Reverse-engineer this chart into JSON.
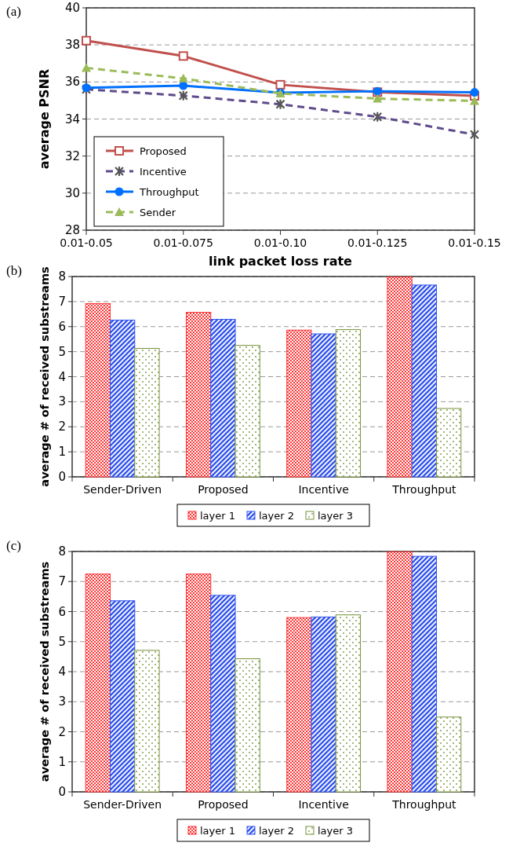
{
  "chart_data": [
    {
      "type": "line",
      "annotations": [
        "(a)"
      ],
      "xlabel": "link packet loss rate",
      "ylabel": "average PSNR",
      "categories": [
        "0.01-0.05",
        "0.01-0.075",
        "0.01-0.10",
        "0.01-0.125",
        "0.01-0.15"
      ],
      "ylim": [
        28,
        40
      ],
      "yticks": [
        28,
        30,
        32,
        34,
        36,
        38,
        40
      ],
      "grid": "y",
      "legend": "bottom left",
      "series": [
        {
          "name": "Proposed",
          "color": "#c0504d",
          "marker": "square",
          "line_style": "solid",
          "values": [
            38.23,
            37.4,
            35.85,
            35.45,
            35.25
          ]
        },
        {
          "name": "Incentive",
          "color": "#5f4b8b",
          "marker": "cross",
          "line_style": "dashed",
          "values": [
            35.6,
            35.26,
            34.8,
            34.12,
            33.16
          ]
        },
        {
          "name": "Throughput",
          "color": "#0070ff",
          "marker": "circle",
          "line_style": "solid",
          "values": [
            35.69,
            35.8,
            35.42,
            35.5,
            35.44
          ]
        },
        {
          "name": "Sender",
          "color": "#9bbb59",
          "marker": "triangle",
          "line_style": "dashed",
          "values": [
            36.76,
            36.19,
            35.38,
            35.1,
            34.98
          ]
        }
      ]
    },
    {
      "type": "bar",
      "annotations": [
        "(b)"
      ],
      "ylabel": "average # of received substreams",
      "categories": [
        "Sender-Driven",
        "Proposed",
        "Incentive",
        "Throughput"
      ],
      "ylim": [
        0,
        8
      ],
      "yticks": [
        0,
        1,
        2,
        3,
        4,
        5,
        6,
        7,
        8
      ],
      "grid": "y",
      "legend": "bottom",
      "series": [
        {
          "name": "layer 1",
          "color": "#ff3333",
          "values": [
            6.92,
            6.57,
            5.86,
            7.98
          ]
        },
        {
          "name": "layer 2",
          "color": "#3355ee",
          "values": [
            6.26,
            6.29,
            5.71,
            7.66
          ]
        },
        {
          "name": "layer 3",
          "color": "#77933c",
          "values": [
            5.13,
            5.25,
            5.88,
            2.73
          ]
        }
      ]
    },
    {
      "type": "bar",
      "annotations": [
        "(c)"
      ],
      "ylabel": "average # of received substreams",
      "categories": [
        "Sender-Driven",
        "Proposed",
        "Incentive",
        "Throughput"
      ],
      "ylim": [
        0,
        8
      ],
      "yticks": [
        0,
        1,
        2,
        3,
        4,
        5,
        6,
        7,
        8
      ],
      "grid": "y",
      "legend": "bottom",
      "series": [
        {
          "name": "layer 1",
          "color": "#ff3333",
          "values": [
            7.25,
            7.25,
            5.8,
            7.99
          ]
        },
        {
          "name": "layer 2",
          "color": "#3355ee",
          "values": [
            6.36,
            6.54,
            5.82,
            7.84
          ]
        },
        {
          "name": "layer 3",
          "color": "#77933c",
          "values": [
            4.71,
            4.43,
            5.89,
            2.49
          ]
        }
      ]
    }
  ]
}
